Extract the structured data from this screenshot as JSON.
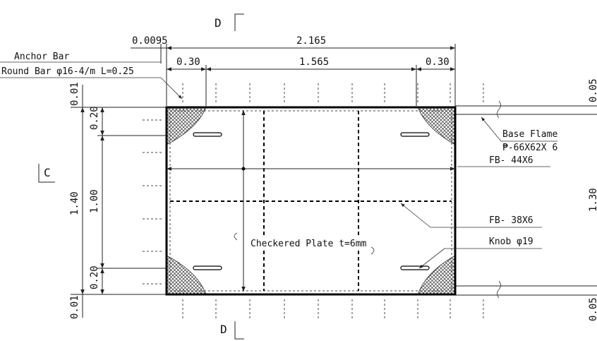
{
  "section_marks": {
    "top": "D",
    "bottom": "D",
    "left": "C"
  },
  "dimensions": {
    "offset": "0.0095",
    "overall_width": "2.165",
    "edge_left": "0.30",
    "middle": "1.565",
    "edge_right": "0.30",
    "top_gap": "0.01",
    "bottom_gap": "0.01",
    "top_band": "0.20",
    "bottom_band": "0.20",
    "overall_height": "1.40",
    "inner_height": "1.00",
    "right_total": "1.30",
    "right_top": "0.05",
    "right_bottom": "0.05"
  },
  "labels": {
    "anchor_bar": "Anchor Bar",
    "round_bar": "Round Bar  φ16-4/m L=0.25",
    "base_flame": "Base Flame",
    "base_flame_spec": "₱-66X62X 6",
    "fb44": "FB- 44X6",
    "fb38": "FB- 38X6",
    "knob": "Knob  φ19",
    "checkered_plate": "Checkered Plate t=6mm"
  }
}
